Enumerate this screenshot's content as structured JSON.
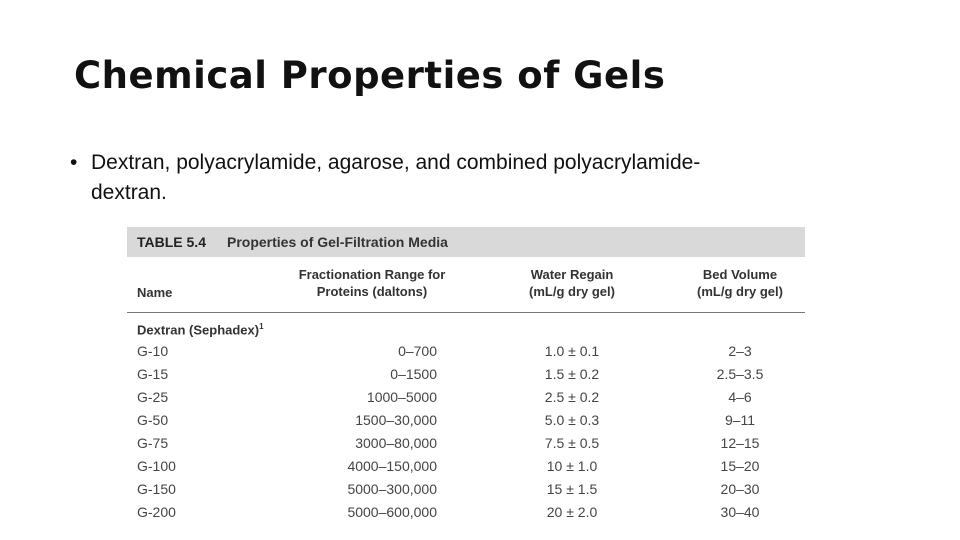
{
  "slide": {
    "title": "Chemical Properties of Gels",
    "bullet_marker": "•",
    "bullet_line1": "Dextran, polyacrylamide, agarose, and combined polyacrylamide-",
    "bullet_line2": "dextran."
  },
  "table": {
    "number": "TABLE 5.4",
    "caption": "Properties of Gel-Filtration Media",
    "headers": {
      "name": "Name",
      "fractionation_line1": "Fractionation Range for",
      "fractionation_line2": "Proteins (daltons)",
      "water_line1": "Water Regain",
      "water_line2": "(mL/g dry gel)",
      "bed_line1": "Bed Volume",
      "bed_line2": "(mL/g dry gel)"
    },
    "group": {
      "label": "Dextran (Sephadex)",
      "footnote": "1"
    },
    "rows": [
      {
        "name": "G-10",
        "range": "0–700",
        "water": "1.0 ± 0.1",
        "bed": "2–3"
      },
      {
        "name": "G-15",
        "range": "0–1500",
        "water": "1.5 ± 0.2",
        "bed": "2.5–3.5"
      },
      {
        "name": "G-25",
        "range": "1000–5000",
        "water": "2.5 ± 0.2",
        "bed": "4–6"
      },
      {
        "name": "G-50",
        "range": "1500–30,000",
        "water": "5.0 ± 0.3",
        "bed": "9–11"
      },
      {
        "name": "G-75",
        "range": "3000–80,000",
        "water": "7.5 ± 0.5",
        "bed": "12–15"
      },
      {
        "name": "G-100",
        "range": "4000–150,000",
        "water": "10 ± 1.0",
        "bed": "15–20"
      },
      {
        "name": "G-150",
        "range": "5000–300,000",
        "water": "15 ± 1.5",
        "bed": "20–30"
      },
      {
        "name": "G-200",
        "range": "5000–600,000",
        "water": "20 ± 2.0",
        "bed": "30–40"
      }
    ]
  }
}
